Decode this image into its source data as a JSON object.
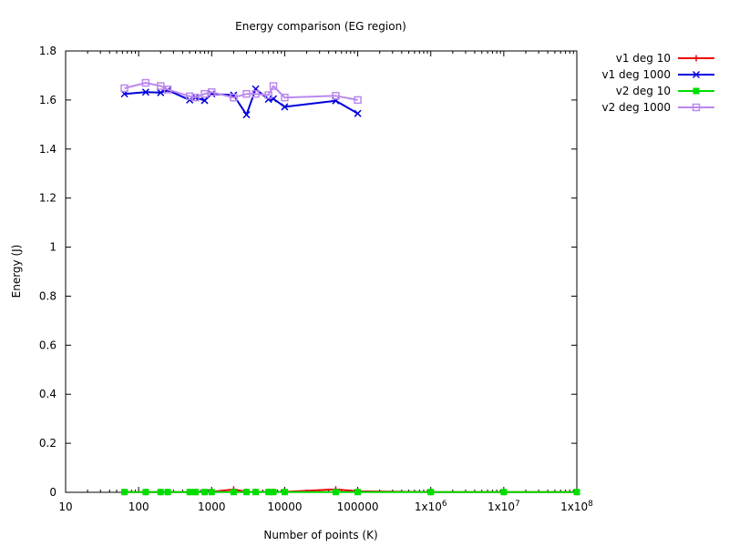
{
  "chart_data": {
    "type": "line",
    "title": "Energy comparison (EG region)",
    "xlabel": "Number of points (K)",
    "ylabel": "Energy (J)",
    "xscale": "log",
    "xlim": [
      10,
      100000000
    ],
    "ylim": [
      0,
      1.8
    ],
    "xticks": [
      {
        "value": 10,
        "label": "10"
      },
      {
        "value": 100,
        "label": "100"
      },
      {
        "value": 1000,
        "label": "1000"
      },
      {
        "value": 10000,
        "label": "10000"
      },
      {
        "value": 100000,
        "label": "100000"
      },
      {
        "value": 1000000,
        "base": "1x10",
        "exp": "6"
      },
      {
        "value": 10000000,
        "base": "1x10",
        "exp": "7"
      },
      {
        "value": 100000000,
        "base": "1x10",
        "exp": "8"
      }
    ],
    "yticks": [
      {
        "value": 0,
        "label": "0"
      },
      {
        "value": 0.2,
        "label": "0.2"
      },
      {
        "value": 0.4,
        "label": "0.4"
      },
      {
        "value": 0.6,
        "label": "0.6"
      },
      {
        "value": 0.8,
        "label": "0.8"
      },
      {
        "value": 1,
        "label": "1"
      },
      {
        "value": 1.2,
        "label": "1.2"
      },
      {
        "value": 1.4,
        "label": "1.4"
      },
      {
        "value": 1.6,
        "label": "1.6"
      },
      {
        "value": 1.8,
        "label": "1.8"
      }
    ],
    "grid": false,
    "legend_position": "outside-top-right",
    "series": [
      {
        "name": "v1 deg 10",
        "color": "#ee0000",
        "marker": "plus",
        "x": [
          64,
          125,
          200,
          250,
          500,
          600,
          800,
          1000,
          2000,
          3000,
          4000,
          6000,
          7000,
          10000,
          50000,
          100000,
          1000000,
          10000000,
          100000000
        ],
        "y": [
          0.001,
          0.001,
          0.001,
          0.001,
          0.001,
          0.001,
          0.001,
          0.002,
          0.012,
          0.002,
          0.002,
          0.002,
          0.002,
          0.002,
          0.012,
          0.004,
          0.001,
          0.001,
          0.001
        ]
      },
      {
        "name": "v1 deg 1000",
        "color": "#0000dd",
        "marker": "x",
        "x": [
          64,
          125,
          200,
          250,
          500,
          600,
          800,
          1000,
          2000,
          3000,
          4000,
          6000,
          7000,
          10000,
          50000,
          100000
        ],
        "y": [
          1.625,
          1.632,
          1.63,
          1.64,
          1.6,
          1.61,
          1.598,
          1.625,
          1.62,
          1.54,
          1.645,
          1.603,
          1.605,
          1.572,
          1.597,
          1.545
        ]
      },
      {
        "name": "v2 deg 10",
        "color": "#00dd00",
        "marker": "filled-square",
        "x": [
          64,
          125,
          200,
          250,
          500,
          600,
          800,
          1000,
          2000,
          3000,
          4000,
          6000,
          7000,
          10000,
          50000,
          100000,
          1000000,
          10000000,
          100000000
        ],
        "y": [
          0.001,
          0.001,
          0.001,
          0.001,
          0.001,
          0.001,
          0.001,
          0.001,
          0.001,
          0.001,
          0.001,
          0.001,
          0.001,
          0.001,
          0.001,
          0.001,
          0.001,
          0.001,
          0.001
        ]
      },
      {
        "name": "v2 deg 1000",
        "color": "#bb88ee",
        "marker": "square",
        "x": [
          64,
          125,
          200,
          250,
          500,
          600,
          800,
          1000,
          2000,
          3000,
          4000,
          6000,
          7000,
          10000,
          50000,
          100000
        ],
        "y": [
          1.648,
          1.67,
          1.657,
          1.643,
          1.615,
          1.61,
          1.625,
          1.632,
          1.61,
          1.625,
          1.625,
          1.62,
          1.657,
          1.61,
          1.617,
          1.6
        ]
      }
    ]
  }
}
